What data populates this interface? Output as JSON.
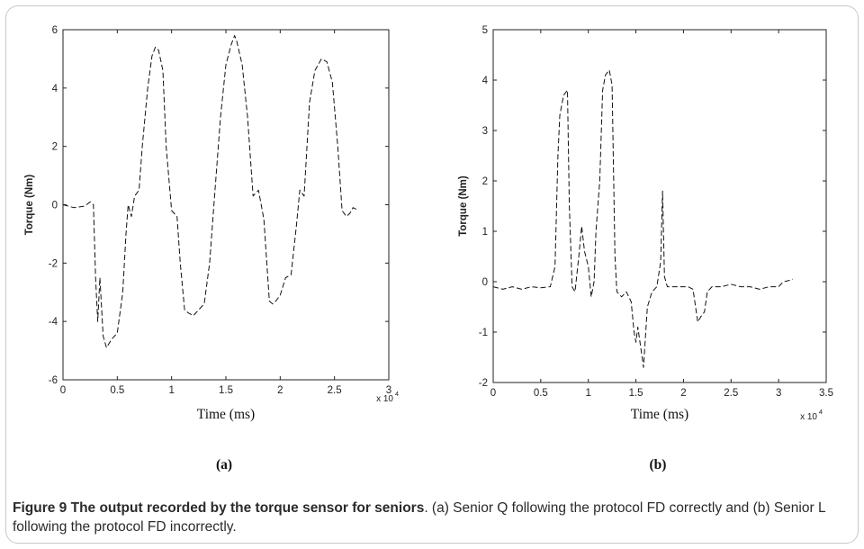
{
  "caption": {
    "bold": "Figure 9 The output recorded by the torque sensor for seniors",
    "text": ". (a) Senior Q following the protocol FD correctly and (b) Senior L following the protocol FD incorrectly."
  },
  "chart_data": [
    {
      "type": "line",
      "panel_label": "(a)",
      "xlabel": "Time (ms)",
      "ylabel": "Torque (Nm)",
      "x_multiplier": "x 10",
      "x_multiplier_exp": "4",
      "xlim": [
        0,
        3
      ],
      "ylim": [
        -6,
        6
      ],
      "xticks": [
        "0",
        "0.5",
        "1",
        "1.5",
        "2",
        "2.5",
        "3"
      ],
      "yticks": [
        "-6",
        "-4",
        "-2",
        "0",
        "2",
        "4",
        "6"
      ],
      "line_color": "#111111",
      "line_style": "dashed",
      "series": [
        {
          "x": [
            0,
            0.1,
            0.2,
            0.25,
            0.28,
            0.3,
            0.32,
            0.34,
            0.37,
            0.4,
            0.45,
            0.5,
            0.55,
            0.58,
            0.6,
            0.63,
            0.66,
            0.7,
            0.73,
            0.78,
            0.82,
            0.85,
            0.88,
            0.92,
            0.95,
            1.0,
            1.05,
            1.08,
            1.12,
            1.15,
            1.2,
            1.25,
            1.3,
            1.35,
            1.4,
            1.45,
            1.5,
            1.55,
            1.58,
            1.6,
            1.65,
            1.7,
            1.75,
            1.8,
            1.85,
            1.9,
            1.93,
            1.96,
            2.0,
            2.05,
            2.1,
            2.15,
            2.18,
            2.22,
            2.27,
            2.32,
            2.38,
            2.43,
            2.48,
            2.53,
            2.57,
            2.61,
            2.64,
            2.67,
            2.7
          ],
          "y": [
            0,
            -0.1,
            -0.05,
            0.1,
            0,
            -2.5,
            -4.0,
            -2.5,
            -4.5,
            -4.9,
            -4.6,
            -4.4,
            -3.0,
            -1.0,
            0,
            -0.4,
            0.3,
            0.5,
            2.0,
            4.0,
            5.1,
            5.4,
            5.3,
            4.6,
            2.0,
            -0.2,
            -0.4,
            -2.0,
            -3.6,
            -3.7,
            -3.8,
            -3.6,
            -3.4,
            -2.0,
            0.5,
            3.0,
            4.8,
            5.5,
            5.8,
            5.6,
            4.8,
            3.0,
            0.3,
            0.5,
            -0.5,
            -3.3,
            -3.4,
            -3.3,
            -3.1,
            -2.5,
            -2.4,
            -0.7,
            0.5,
            0.3,
            3.5,
            4.6,
            5.0,
            4.9,
            4.2,
            2.0,
            -0.2,
            -0.4,
            -0.3,
            -0.1,
            -0.15
          ]
        }
      ]
    },
    {
      "type": "line",
      "panel_label": "(b)",
      "xlabel": "Time (ms)",
      "ylabel": "Torque (Nm)",
      "x_multiplier": "x 10",
      "x_multiplier_exp": "4",
      "xlim": [
        0,
        3.5
      ],
      "ylim": [
        -2,
        5
      ],
      "xticks": [
        "0",
        "0.5",
        "1",
        "1.5",
        "2",
        "2.5",
        "3",
        "3.5"
      ],
      "yticks": [
        "-2",
        "-1",
        "0",
        "1",
        "2",
        "3",
        "4",
        "5"
      ],
      "line_color": "#111111",
      "line_style": "dashed",
      "series": [
        {
          "x": [
            0,
            0.1,
            0.2,
            0.3,
            0.4,
            0.5,
            0.6,
            0.65,
            0.68,
            0.7,
            0.74,
            0.78,
            0.8,
            0.83,
            0.86,
            0.9,
            0.93,
            0.96,
            1.0,
            1.03,
            1.06,
            1.08,
            1.12,
            1.15,
            1.18,
            1.22,
            1.25,
            1.28,
            1.3,
            1.35,
            1.4,
            1.45,
            1.48,
            1.5,
            1.52,
            1.55,
            1.58,
            1.62,
            1.67,
            1.72,
            1.76,
            1.78,
            1.8,
            1.83,
            1.9,
            2.0,
            2.05,
            2.1,
            2.15,
            2.18,
            2.22,
            2.25,
            2.3,
            2.4,
            2.5,
            2.6,
            2.7,
            2.8,
            2.9,
            3.0,
            3.05,
            3.1,
            3.15
          ],
          "y": [
            -0.1,
            -0.15,
            -0.1,
            -0.15,
            -0.1,
            -0.12,
            -0.1,
            0.3,
            2.5,
            3.3,
            3.7,
            3.8,
            1.5,
            -0.1,
            -0.2,
            0.5,
            1.1,
            0.6,
            0.3,
            -0.3,
            0,
            1.0,
            2.0,
            3.8,
            4.1,
            4.2,
            3.9,
            0.5,
            -0.2,
            -0.3,
            -0.2,
            -0.4,
            -1.0,
            -1.2,
            -0.9,
            -1.3,
            -1.7,
            -0.5,
            -0.2,
            -0.1,
            0.4,
            1.8,
            0.1,
            -0.1,
            -0.1,
            -0.1,
            -0.1,
            -0.15,
            -0.8,
            -0.7,
            -0.6,
            -0.2,
            -0.1,
            -0.1,
            -0.05,
            -0.1,
            -0.1,
            -0.15,
            -0.1,
            -0.1,
            0,
            0.02,
            0.05
          ]
        }
      ]
    }
  ]
}
